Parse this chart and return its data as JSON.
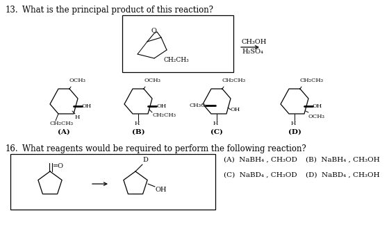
{
  "bg_color": "#ffffff",
  "fig_width": 5.6,
  "fig_height": 3.3,
  "dpi": 100,
  "q13_number": "13.",
  "q13_text": "What is the principal product of this reaction?",
  "q16_number": "16.",
  "q16_text": "What reagents would be required to perform the following reaction?",
  "ch2ch3_label": "CH₂CH₃",
  "reagent1": "CH₃OH",
  "reagent2": "H₂SO₄",
  "A_label": "(A)",
  "B_label": "(B)",
  "C_label": "(C)",
  "D_label": "(D)",
  "A_OCH3": "OCH₃",
  "A_OH": "OH",
  "A_H": "H",
  "A_CH2CH3": "CH₂CH₃",
  "B_OCH3": "OCH₃",
  "B_OH": "OH",
  "B_CH2CH3": "CH₂CH₃",
  "B_H": "H",
  "C_CH2CH3": "CH₂CH₃",
  "C_CH3O": "CH₃O",
  "C_OH": "OH",
  "C_H": "H",
  "D_CH2CH3": "CH₂CH₃",
  "D_OH": "OH",
  "D_OCH3": "OCH₃",
  "D_H": "H",
  "q16_A": "(A)  NaBH₄ , CH₃OD",
  "q16_B": "(B)  NaBH₄ , CH₃OH",
  "q16_C": "(C)  NaBD₄ , CH₃OD",
  "q16_D": "(D)  NaBD₄ , CH₃OH",
  "fq": 8.5,
  "fl": 7.0,
  "fs": 6.0
}
